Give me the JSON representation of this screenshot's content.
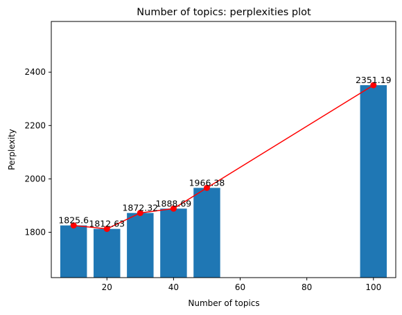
{
  "chart_data": {
    "type": "bar",
    "title": "Number of topics: perplexities plot",
    "xlabel": "Number of topics",
    "ylabel": "Perplexity",
    "x": [
      10,
      20,
      30,
      40,
      50,
      100
    ],
    "values": [
      1825.6,
      1812.63,
      1872.32,
      1888.69,
      1966.38,
      2351.19
    ],
    "data_labels": [
      "1825.6",
      "1812.63",
      "1872.32",
      "1888.69",
      "1966.38",
      "2351.19"
    ],
    "bar_width": 8,
    "xlim": [
      3.3,
      106.7
    ],
    "ylim": [
      1630,
      2590
    ],
    "xticks": [
      20,
      40,
      60,
      80,
      100
    ],
    "yticks": [
      1800,
      2000,
      2200,
      2400
    ],
    "grid": false,
    "series": [
      {
        "kind": "bar",
        "color": "#1f77b4"
      },
      {
        "kind": "line",
        "marker": "circle",
        "color": "#ff0000"
      }
    ]
  }
}
